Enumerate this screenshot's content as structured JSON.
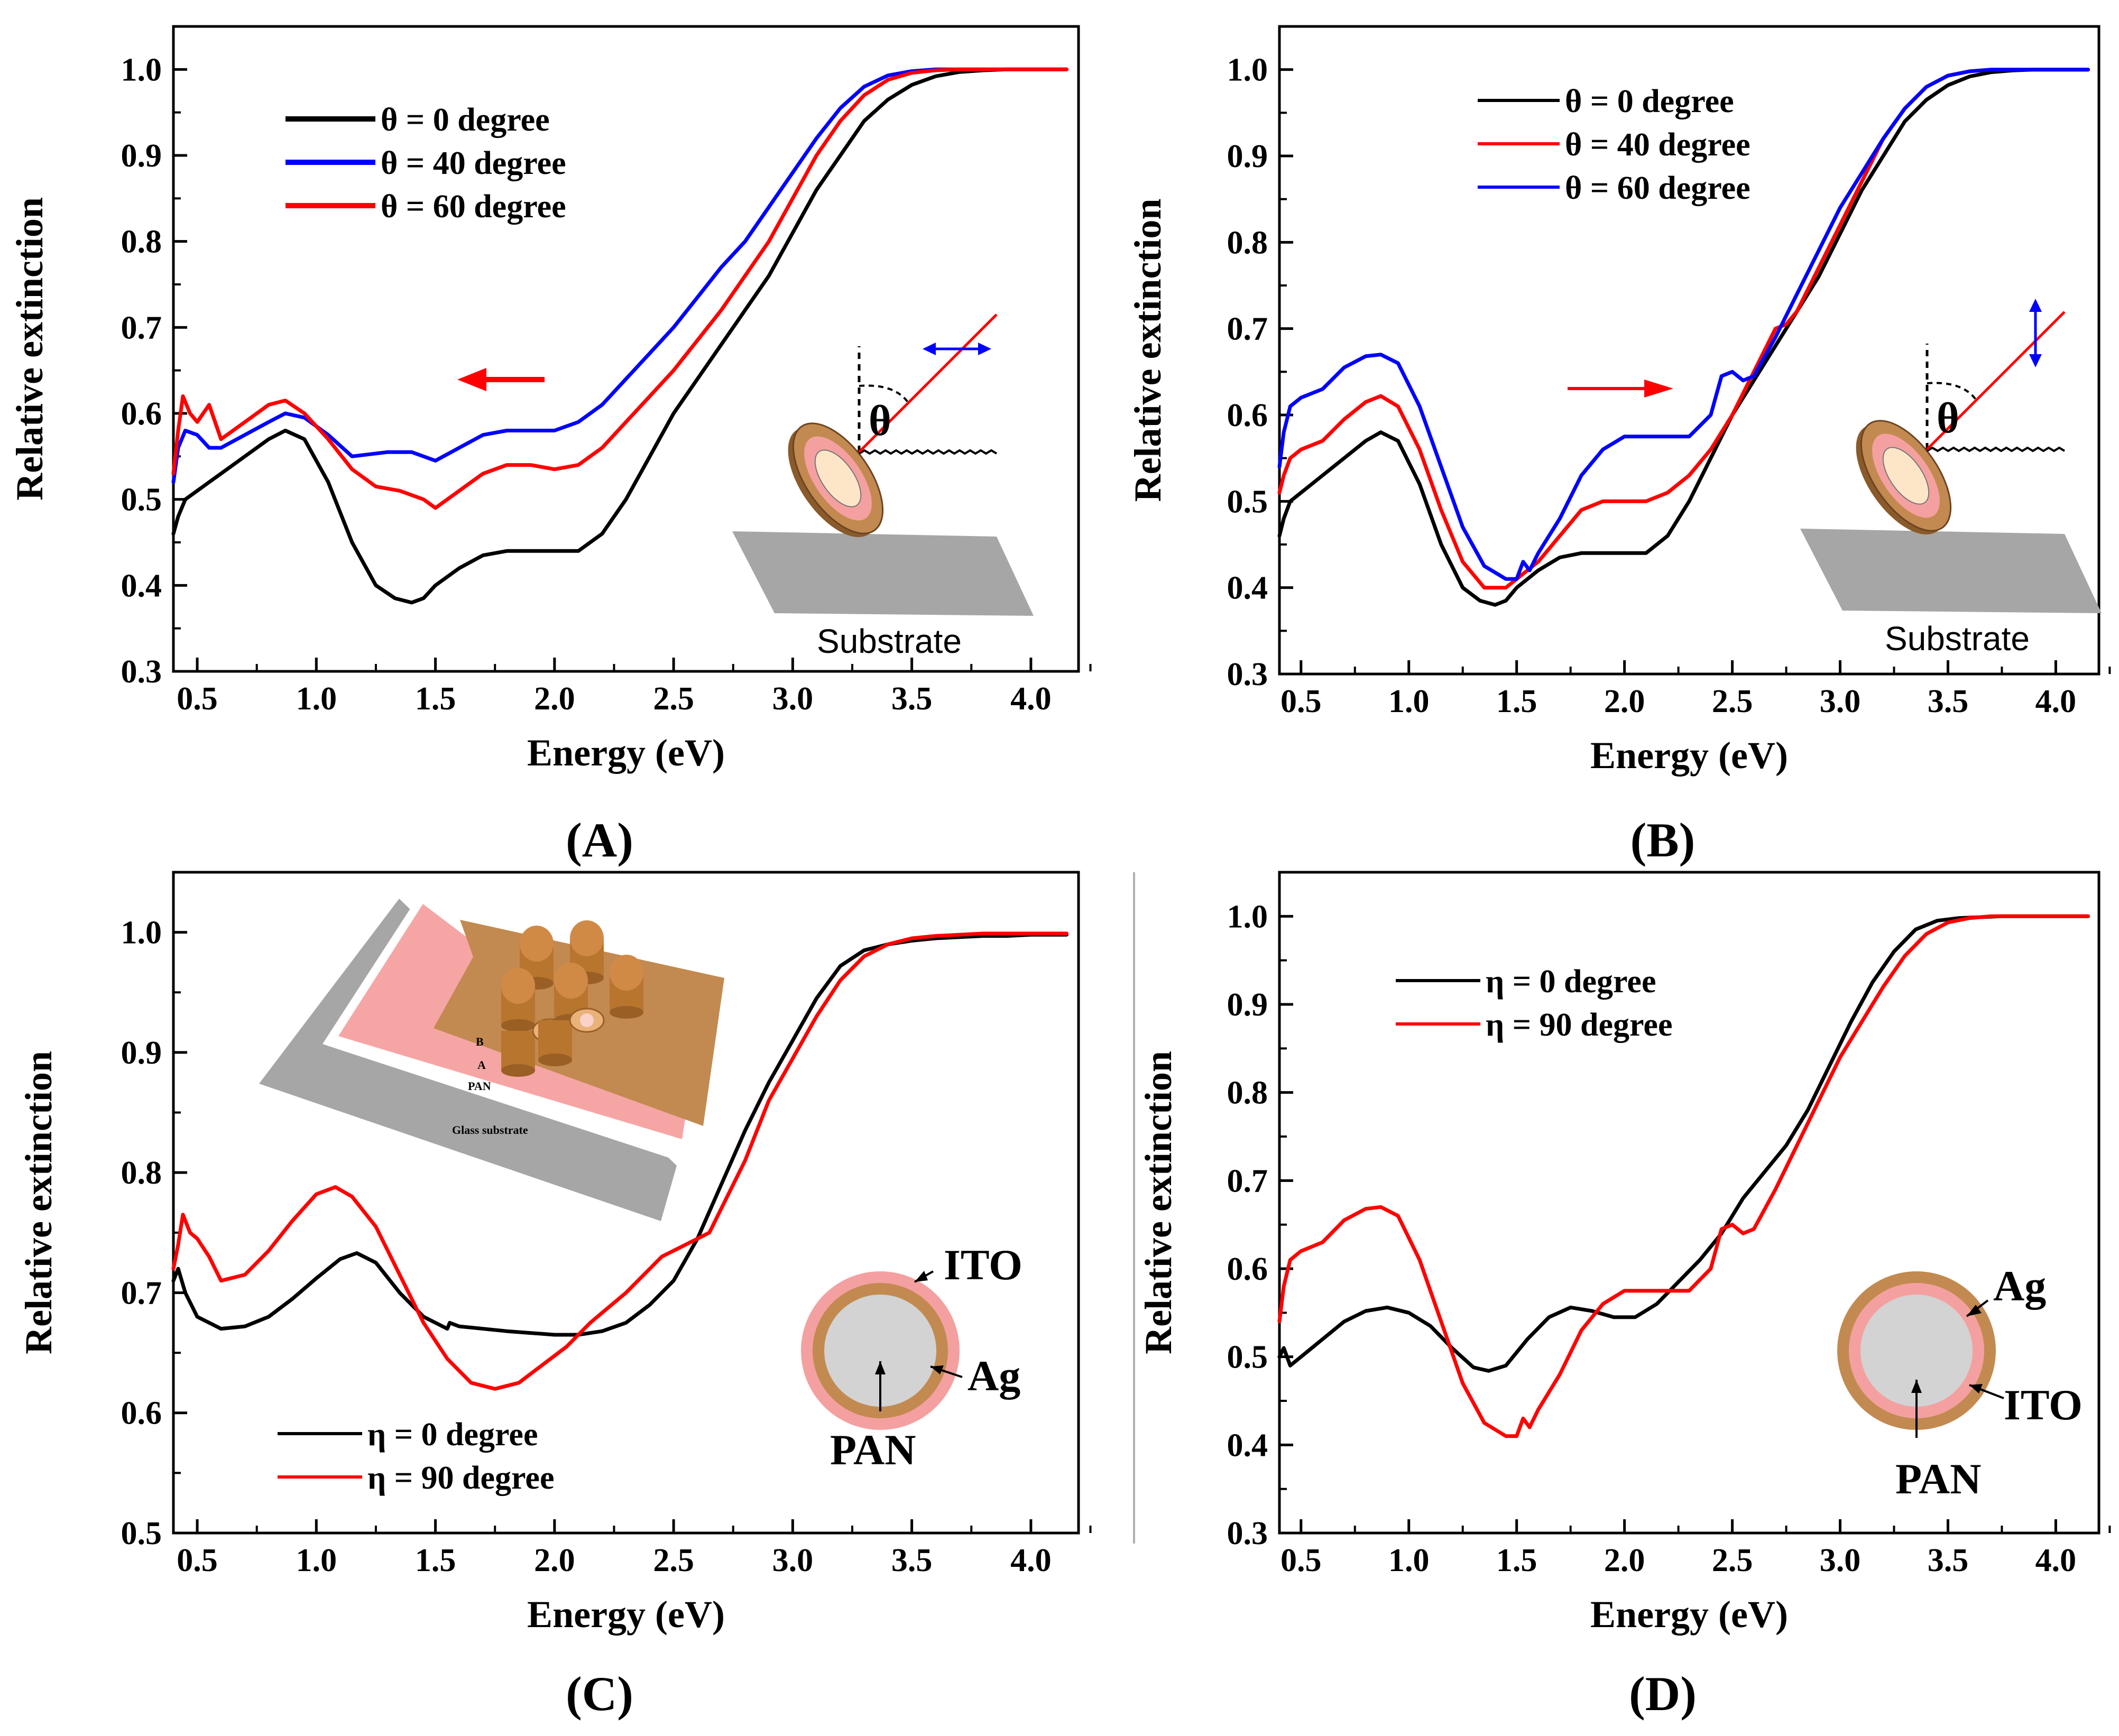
{
  "chart_data": [
    {
      "type": "line",
      "panel_label": "(A)",
      "xlabel": "Energy (eV)",
      "ylabel": "Relative extinction",
      "xlim": [
        0.4,
        4.2
      ],
      "ylim": [
        0.3,
        1.05
      ],
      "xticks": [
        "0.5",
        "1.0",
        "1.5",
        "2.0",
        "2.5",
        "3.0",
        "3.5",
        "4.0"
      ],
      "yticks": [
        "0.3",
        "0.4",
        "0.5",
        "0.6",
        "0.7",
        "0.8",
        "0.9",
        "1.0"
      ],
      "legend_position": "top-left",
      "series": [
        {
          "name": "θ = 0 degree",
          "color": "#000000",
          "x": [
            0.4,
            0.42,
            0.45,
            0.5,
            0.55,
            0.6,
            0.7,
            0.8,
            0.87,
            0.95,
            1.05,
            1.15,
            1.25,
            1.33,
            1.4,
            1.45,
            1.5,
            1.6,
            1.7,
            1.8,
            1.9,
            2.0,
            2.1,
            2.2,
            2.3,
            2.4,
            2.5,
            2.6,
            2.7,
            2.8,
            2.9,
            3.0,
            3.1,
            3.2,
            3.3,
            3.4,
            3.5,
            3.6,
            3.7,
            3.8,
            3.9,
            4.0,
            4.15
          ],
          "y": [
            0.46,
            0.48,
            0.5,
            0.51,
            0.52,
            0.53,
            0.55,
            0.57,
            0.58,
            0.57,
            0.52,
            0.45,
            0.4,
            0.385,
            0.38,
            0.385,
            0.4,
            0.42,
            0.435,
            0.44,
            0.44,
            0.44,
            0.44,
            0.46,
            0.5,
            0.55,
            0.6,
            0.64,
            0.68,
            0.72,
            0.76,
            0.81,
            0.86,
            0.9,
            0.94,
            0.965,
            0.982,
            0.992,
            0.997,
            0.999,
            1.0,
            1.0,
            1.0
          ]
        },
        {
          "name": "θ = 40 degree",
          "color": "#0000ff",
          "x": [
            0.4,
            0.42,
            0.45,
            0.5,
            0.55,
            0.6,
            0.7,
            0.8,
            0.87,
            0.95,
            1.05,
            1.15,
            1.3,
            1.4,
            1.5,
            1.6,
            1.7,
            1.8,
            1.9,
            2.0,
            2.1,
            2.2,
            2.3,
            2.4,
            2.5,
            2.6,
            2.7,
            2.8,
            2.9,
            3.0,
            3.1,
            3.2,
            3.3,
            3.4,
            3.5,
            3.6,
            3.7,
            3.8,
            3.9,
            4.0,
            4.15
          ],
          "y": [
            0.52,
            0.56,
            0.58,
            0.575,
            0.56,
            0.56,
            0.575,
            0.59,
            0.6,
            0.595,
            0.575,
            0.55,
            0.555,
            0.555,
            0.545,
            0.56,
            0.575,
            0.58,
            0.58,
            0.58,
            0.59,
            0.61,
            0.64,
            0.67,
            0.7,
            0.735,
            0.77,
            0.8,
            0.84,
            0.88,
            0.92,
            0.955,
            0.98,
            0.993,
            0.998,
            1.0,
            1.0,
            1.0,
            1.0,
            1.0,
            1.0
          ]
        },
        {
          "name": "θ = 60 degree",
          "color": "#ff0000",
          "x": [
            0.4,
            0.42,
            0.44,
            0.47,
            0.5,
            0.55,
            0.6,
            0.7,
            0.8,
            0.87,
            0.95,
            1.05,
            1.15,
            1.25,
            1.35,
            1.45,
            1.5,
            1.6,
            1.7,
            1.8,
            1.9,
            2.0,
            2.1,
            2.2,
            2.3,
            2.4,
            2.5,
            2.6,
            2.7,
            2.8,
            2.9,
            3.0,
            3.1,
            3.2,
            3.3,
            3.4,
            3.5,
            3.6,
            3.7,
            3.8,
            3.9,
            4.0,
            4.15
          ],
          "y": [
            0.53,
            0.58,
            0.62,
            0.6,
            0.59,
            0.61,
            0.57,
            0.59,
            0.61,
            0.615,
            0.6,
            0.57,
            0.535,
            0.515,
            0.51,
            0.5,
            0.49,
            0.51,
            0.53,
            0.54,
            0.54,
            0.535,
            0.54,
            0.56,
            0.59,
            0.62,
            0.65,
            0.685,
            0.72,
            0.76,
            0.8,
            0.85,
            0.9,
            0.94,
            0.97,
            0.988,
            0.996,
            0.999,
            1.0,
            1.0,
            1.0,
            1.0,
            1.0
          ]
        }
      ],
      "inset_label": "Substrate",
      "angle_symbol": "θ"
    },
    {
      "type": "line",
      "panel_label": "(B)",
      "xlabel": "Energy (eV)",
      "ylabel": "Relative extinction",
      "xlim": [
        0.4,
        4.2
      ],
      "ylim": [
        0.3,
        1.05
      ],
      "xticks": [
        "0.5",
        "1.0",
        "1.5",
        "2.0",
        "2.5",
        "3.0",
        "3.5",
        "4.0"
      ],
      "yticks": [
        "0.3",
        "0.4",
        "0.5",
        "0.6",
        "0.7",
        "0.8",
        "0.9",
        "1.0"
      ],
      "legend_position": "top-left",
      "series": [
        {
          "name": "θ = 0 degree",
          "color": "#000000",
          "x": [
            0.4,
            0.42,
            0.45,
            0.5,
            0.55,
            0.6,
            0.7,
            0.8,
            0.87,
            0.95,
            1.05,
            1.15,
            1.25,
            1.33,
            1.4,
            1.45,
            1.5,
            1.6,
            1.7,
            1.8,
            1.9,
            2.0,
            2.1,
            2.2,
            2.3,
            2.4,
            2.5,
            2.6,
            2.7,
            2.8,
            2.9,
            3.0,
            3.1,
            3.2,
            3.3,
            3.4,
            3.5,
            3.6,
            3.7,
            3.8,
            3.9,
            4.0,
            4.15
          ],
          "y": [
            0.46,
            0.48,
            0.5,
            0.51,
            0.52,
            0.53,
            0.55,
            0.57,
            0.58,
            0.57,
            0.52,
            0.45,
            0.4,
            0.385,
            0.38,
            0.385,
            0.4,
            0.42,
            0.435,
            0.44,
            0.44,
            0.44,
            0.44,
            0.46,
            0.5,
            0.55,
            0.6,
            0.64,
            0.68,
            0.72,
            0.76,
            0.81,
            0.86,
            0.9,
            0.94,
            0.965,
            0.982,
            0.992,
            0.997,
            0.999,
            1.0,
            1.0,
            1.0
          ]
        },
        {
          "name": "θ = 40 degree",
          "color": "#ff0000",
          "x": [
            0.4,
            0.42,
            0.45,
            0.5,
            0.6,
            0.7,
            0.8,
            0.87,
            0.95,
            1.05,
            1.15,
            1.25,
            1.35,
            1.45,
            1.5,
            1.6,
            1.7,
            1.8,
            1.9,
            2.0,
            2.1,
            2.2,
            2.3,
            2.4,
            2.5,
            2.6,
            2.7,
            2.75,
            2.8,
            2.9,
            3.0,
            3.1,
            3.2,
            3.3,
            3.4,
            3.5,
            3.6,
            3.7,
            3.8,
            3.9,
            4.0,
            4.15
          ],
          "y": [
            0.51,
            0.53,
            0.55,
            0.56,
            0.57,
            0.595,
            0.615,
            0.622,
            0.61,
            0.56,
            0.49,
            0.43,
            0.4,
            0.4,
            0.41,
            0.43,
            0.46,
            0.49,
            0.5,
            0.5,
            0.5,
            0.51,
            0.53,
            0.56,
            0.6,
            0.65,
            0.7,
            0.705,
            0.72,
            0.77,
            0.82,
            0.87,
            0.92,
            0.955,
            0.98,
            0.993,
            0.998,
            1.0,
            1.0,
            1.0,
            1.0,
            1.0
          ]
        },
        {
          "name": "θ = 60 degree",
          "color": "#0000ff",
          "x": [
            0.4,
            0.42,
            0.45,
            0.5,
            0.6,
            0.7,
            0.8,
            0.87,
            0.95,
            1.05,
            1.15,
            1.25,
            1.35,
            1.45,
            1.5,
            1.53,
            1.56,
            1.6,
            1.7,
            1.8,
            1.9,
            2.0,
            2.1,
            2.2,
            2.3,
            2.4,
            2.45,
            2.5,
            2.55,
            2.6,
            2.7,
            2.8,
            2.9,
            3.0,
            3.1,
            3.2,
            3.3,
            3.4,
            3.5,
            3.6,
            3.7,
            3.8,
            3.9,
            4.0,
            4.15
          ],
          "y": [
            0.54,
            0.58,
            0.61,
            0.62,
            0.63,
            0.655,
            0.668,
            0.67,
            0.66,
            0.61,
            0.54,
            0.47,
            0.425,
            0.41,
            0.41,
            0.43,
            0.42,
            0.44,
            0.48,
            0.53,
            0.56,
            0.575,
            0.575,
            0.575,
            0.575,
            0.6,
            0.645,
            0.65,
            0.64,
            0.645,
            0.69,
            0.74,
            0.79,
            0.84,
            0.88,
            0.92,
            0.955,
            0.98,
            0.993,
            0.998,
            1.0,
            1.0,
            1.0,
            1.0,
            1.0
          ]
        }
      ],
      "inset_label": "Substrate",
      "angle_symbol": "θ"
    },
    {
      "type": "line",
      "panel_label": "(C)",
      "xlabel": "Energy (eV)",
      "ylabel": "Relative extinction",
      "xlim": [
        0.4,
        4.2
      ],
      "ylim": [
        0.5,
        1.05
      ],
      "xticks": [
        "0.5",
        "1.0",
        "1.5",
        "2.0",
        "2.5",
        "3.0",
        "3.5",
        "4.0"
      ],
      "yticks": [
        "0.5",
        "0.6",
        "0.7",
        "0.8",
        "0.9",
        "1.0"
      ],
      "legend_position": "bottom-left",
      "series": [
        {
          "name": "η = 0 degree",
          "color": "#000000",
          "x": [
            0.4,
            0.42,
            0.45,
            0.5,
            0.55,
            0.6,
            0.7,
            0.8,
            0.9,
            1.0,
            1.1,
            1.17,
            1.25,
            1.35,
            1.45,
            1.55,
            1.56,
            1.6,
            1.8,
            2.0,
            2.1,
            2.2,
            2.3,
            2.4,
            2.5,
            2.6,
            2.7,
            2.8,
            2.9,
            3.0,
            3.1,
            3.2,
            3.3,
            3.4,
            3.5,
            3.6,
            3.7,
            3.8,
            3.9,
            4.0,
            4.15
          ],
          "y": [
            0.71,
            0.72,
            0.7,
            0.68,
            0.675,
            0.67,
            0.672,
            0.68,
            0.695,
            0.712,
            0.728,
            0.733,
            0.725,
            0.7,
            0.68,
            0.67,
            0.675,
            0.672,
            0.668,
            0.665,
            0.665,
            0.668,
            0.675,
            0.69,
            0.71,
            0.745,
            0.79,
            0.835,
            0.875,
            0.91,
            0.945,
            0.972,
            0.985,
            0.99,
            0.993,
            0.995,
            0.996,
            0.997,
            0.997,
            0.998,
            0.998
          ]
        },
        {
          "name": "η = 90 degree",
          "color": "#ff0000",
          "x": [
            0.4,
            0.42,
            0.44,
            0.47,
            0.5,
            0.55,
            0.6,
            0.7,
            0.8,
            0.9,
            1.0,
            1.08,
            1.15,
            1.25,
            1.35,
            1.45,
            1.55,
            1.65,
            1.75,
            1.85,
            1.95,
            2.05,
            2.15,
            2.3,
            2.45,
            2.6,
            2.65,
            2.8,
            2.9,
            3.0,
            3.1,
            3.2,
            3.3,
            3.4,
            3.5,
            3.6,
            3.7,
            3.8,
            3.9,
            4.0,
            4.15
          ],
          "y": [
            0.72,
            0.74,
            0.765,
            0.75,
            0.745,
            0.73,
            0.71,
            0.715,
            0.735,
            0.76,
            0.782,
            0.788,
            0.78,
            0.755,
            0.715,
            0.675,
            0.645,
            0.625,
            0.62,
            0.625,
            0.64,
            0.655,
            0.675,
            0.7,
            0.73,
            0.745,
            0.75,
            0.81,
            0.86,
            0.895,
            0.93,
            0.96,
            0.98,
            0.99,
            0.995,
            0.997,
            0.998,
            0.999,
            0.999,
            0.999,
            0.999
          ]
        }
      ],
      "inset_labels": {
        "layer_b": "B",
        "layer_a": "A",
        "layer_pan": "PAN",
        "substrate": "Glass substrate",
        "shell_outer": "ITO",
        "shell_inner": "Ag",
        "core": "PAN"
      }
    },
    {
      "type": "line",
      "panel_label": "(D)",
      "xlabel": "Energy (eV)",
      "ylabel": "Relative extinction",
      "xlim": [
        0.4,
        4.2
      ],
      "ylim": [
        0.3,
        1.05
      ],
      "xticks": [
        "0.5",
        "1.0",
        "1.5",
        "2.0",
        "2.5",
        "3.0",
        "3.5",
        "4.0"
      ],
      "yticks": [
        "0.3",
        "0.4",
        "0.5",
        "0.6",
        "0.7",
        "0.8",
        "0.9",
        "1.0"
      ],
      "legend_position": "top-left",
      "series": [
        {
          "name": "η = 0 degree",
          "color": "#000000",
          "x": [
            0.4,
            0.42,
            0.45,
            0.5,
            0.55,
            0.6,
            0.7,
            0.8,
            0.9,
            1.0,
            1.1,
            1.2,
            1.3,
            1.37,
            1.45,
            1.55,
            1.65,
            1.75,
            1.85,
            1.95,
            2.05,
            2.15,
            2.25,
            2.35,
            2.45,
            2.55,
            2.65,
            2.75,
            2.85,
            2.95,
            3.05,
            3.15,
            3.25,
            3.35,
            3.45,
            3.55,
            3.65,
            3.75,
            3.9,
            4.0,
            4.15
          ],
          "y": [
            0.5,
            0.51,
            0.49,
            0.5,
            0.51,
            0.52,
            0.54,
            0.552,
            0.556,
            0.55,
            0.535,
            0.51,
            0.488,
            0.484,
            0.49,
            0.52,
            0.545,
            0.556,
            0.552,
            0.545,
            0.545,
            0.56,
            0.585,
            0.61,
            0.64,
            0.68,
            0.71,
            0.74,
            0.78,
            0.83,
            0.88,
            0.925,
            0.96,
            0.985,
            0.995,
            0.998,
            0.999,
            1.0,
            1.0,
            1.0,
            1.0
          ]
        },
        {
          "name": "η = 90 degree",
          "color": "#ff0000",
          "x": [
            0.4,
            0.42,
            0.45,
            0.5,
            0.6,
            0.7,
            0.8,
            0.87,
            0.95,
            1.05,
            1.15,
            1.25,
            1.35,
            1.45,
            1.5,
            1.53,
            1.56,
            1.6,
            1.7,
            1.8,
            1.9,
            2.0,
            2.1,
            2.2,
            2.3,
            2.4,
            2.45,
            2.5,
            2.55,
            2.6,
            2.7,
            2.8,
            2.9,
            3.0,
            3.1,
            3.2,
            3.3,
            3.4,
            3.5,
            3.6,
            3.7,
            3.8,
            3.9,
            4.0,
            4.15
          ],
          "y": [
            0.54,
            0.58,
            0.61,
            0.62,
            0.63,
            0.655,
            0.668,
            0.67,
            0.66,
            0.61,
            0.54,
            0.47,
            0.425,
            0.41,
            0.41,
            0.43,
            0.42,
            0.44,
            0.48,
            0.53,
            0.56,
            0.575,
            0.575,
            0.575,
            0.575,
            0.6,
            0.645,
            0.65,
            0.64,
            0.645,
            0.69,
            0.74,
            0.79,
            0.84,
            0.88,
            0.92,
            0.955,
            0.98,
            0.993,
            0.998,
            1.0,
            1.0,
            1.0,
            1.0,
            1.0
          ]
        }
      ],
      "inset_labels": {
        "shell_outer": "Ag",
        "shell_inner": "ITO",
        "core": "PAN"
      }
    }
  ],
  "colors": {
    "black": "#000000",
    "blue": "#0000ff",
    "red": "#ff0000",
    "gray": "#a6a6a6",
    "copper": "#c28a50",
    "pink": "#f4a0a0",
    "core": "#d3d3d3"
  }
}
